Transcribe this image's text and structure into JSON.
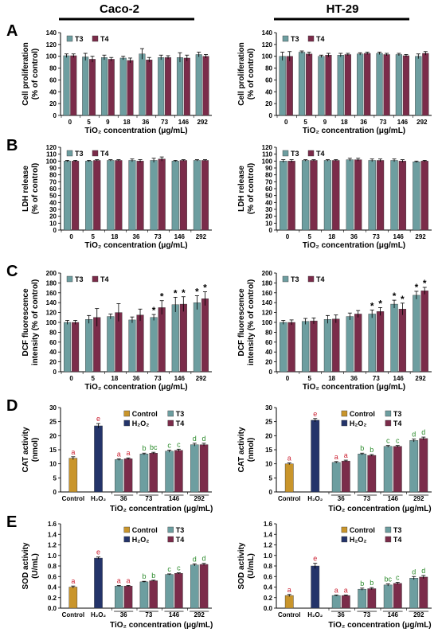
{
  "headers": {
    "left": "Caco-2",
    "right": "HT-29"
  },
  "colors": {
    "T3": "#6d9ea0",
    "T4": "#7b2c4a",
    "Control": "#c9952b",
    "H2O2": "#24346a"
  },
  "chart_data": [
    {
      "id": "A-left",
      "panel_label": "A",
      "type": "bar",
      "ylabel": [
        "Cell proliferation",
        "(% of control)"
      ],
      "xlabel": "TiO₂ concentration (μg/mL)",
      "ylim": [
        0,
        140
      ],
      "yticks": [
        0,
        20,
        40,
        60,
        80,
        100,
        120,
        140
      ],
      "legend": [
        "T3",
        "T4"
      ],
      "legend_position": "top-left",
      "categories": [
        "0",
        "5",
        "9",
        "18",
        "36",
        "73",
        "146",
        "292"
      ],
      "series": [
        {
          "name": "T3",
          "values": [
            101,
            99,
            98,
            97,
            104,
            98,
            98,
            103
          ],
          "err": [
            3,
            6,
            4,
            3,
            9,
            4,
            8,
            4
          ]
        },
        {
          "name": "T4",
          "values": [
            101,
            95,
            95,
            93,
            94,
            98,
            97,
            100
          ],
          "err": [
            3,
            5,
            3,
            4,
            4,
            3,
            5,
            3
          ]
        }
      ]
    },
    {
      "id": "A-right",
      "panel_label": "",
      "type": "bar",
      "ylabel": [
        "Cell proliferation",
        "(% of control)"
      ],
      "xlabel": "TiO₂ concentration (μg/mL)",
      "ylim": [
        0,
        140
      ],
      "yticks": [
        0,
        20,
        40,
        60,
        80,
        100,
        120,
        140
      ],
      "legend": [
        "T3",
        "T4"
      ],
      "legend_position": "top-left",
      "categories": [
        "0",
        "5",
        "9",
        "18",
        "36",
        "73",
        "146",
        "292"
      ],
      "series": [
        {
          "name": "T3",
          "values": [
            100,
            107,
            100,
            102,
            104,
            105,
            103,
            100
          ],
          "err": [
            7,
            2,
            2,
            3,
            2,
            2,
            2,
            4
          ]
        },
        {
          "name": "T4",
          "values": [
            100,
            104,
            102,
            103,
            105,
            103,
            101,
            105
          ],
          "err": [
            8,
            3,
            3,
            2,
            2,
            2,
            2,
            3
          ]
        }
      ]
    },
    {
      "id": "B-left",
      "panel_label": "B",
      "type": "bar",
      "ylabel": [
        "LDH release",
        "(% of control)"
      ],
      "xlabel": "TiO₂ concentration (μg/mL)",
      "ylim": [
        0,
        120
      ],
      "yticks": [
        0,
        10,
        20,
        30,
        40,
        50,
        60,
        70,
        80,
        90,
        100,
        110,
        120
      ],
      "legend": [
        "T3",
        "T4"
      ],
      "legend_position": "top-left",
      "categories": [
        "0",
        "5",
        "18",
        "36",
        "73",
        "146",
        "292"
      ],
      "series": [
        {
          "name": "T3",
          "values": [
            100,
            100,
            101,
            101,
            101,
            100,
            101
          ],
          "err": [
            1,
            1,
            1,
            2,
            3,
            1,
            1
          ]
        },
        {
          "name": "T4",
          "values": [
            100,
            101,
            101,
            100,
            103,
            101,
            101
          ],
          "err": [
            1,
            1,
            1,
            2,
            3,
            1,
            1
          ]
        }
      ]
    },
    {
      "id": "B-right",
      "panel_label": "",
      "type": "bar",
      "ylabel": [
        "LDH release",
        "(% of control)"
      ],
      "xlabel": "TiO₂ concentration (μg/mL)",
      "ylim": [
        0,
        120
      ],
      "yticks": [
        0,
        10,
        20,
        30,
        40,
        50,
        60,
        70,
        80,
        90,
        100,
        110,
        120
      ],
      "legend": [
        "T3",
        "T4"
      ],
      "legend_position": "top-left",
      "categories": [
        "0",
        "5",
        "18",
        "36",
        "73",
        "146",
        "292"
      ],
      "series": [
        {
          "name": "T3",
          "values": [
            100,
            101,
            101,
            102,
            101,
            101,
            99
          ],
          "err": [
            2,
            1,
            1,
            2,
            2,
            2,
            1
          ]
        },
        {
          "name": "T4",
          "values": [
            100,
            101,
            101,
            102,
            101,
            100,
            100
          ],
          "err": [
            2,
            1,
            1,
            2,
            2,
            2,
            1
          ]
        }
      ]
    },
    {
      "id": "C-left",
      "panel_label": "C",
      "type": "bar",
      "ylabel": [
        "DCF fluorescence",
        "intensity (% of control)"
      ],
      "xlabel": "TiO₂ concentration (μg/mL)",
      "ylim": [
        0,
        200
      ],
      "yticks": [
        0,
        20,
        40,
        60,
        80,
        100,
        120,
        140,
        160,
        180,
        200
      ],
      "legend": [
        "T3",
        "T4"
      ],
      "legend_position": "top-left",
      "categories": [
        "0",
        "5",
        "18",
        "36",
        "73",
        "146",
        "292"
      ],
      "series": [
        {
          "name": "T3",
          "values": [
            100,
            106,
            112,
            105,
            110,
            136,
            140
          ],
          "err": [
            4,
            8,
            5,
            6,
            6,
            15,
            14
          ],
          "sig": [
            "",
            "",
            "",
            "",
            "*",
            "*",
            "*"
          ]
        },
        {
          "name": "T4",
          "values": [
            100,
            110,
            120,
            115,
            130,
            137,
            148
          ],
          "err": [
            4,
            18,
            18,
            12,
            14,
            15,
            14
          ],
          "sig": [
            "",
            "",
            "",
            "",
            "*",
            "*",
            "*"
          ]
        }
      ]
    },
    {
      "id": "C-right",
      "panel_label": "",
      "type": "bar",
      "ylabel": [
        "DCF fluorescence",
        "intensity (% of control)"
      ],
      "xlabel": "TiO₂ concentration (μg/mL)",
      "ylim": [
        0,
        200
      ],
      "yticks": [
        0,
        20,
        40,
        60,
        80,
        100,
        120,
        140,
        160,
        180,
        200
      ],
      "legend": [
        "T3",
        "T4"
      ],
      "legend_position": "top-left",
      "categories": [
        "0",
        "5",
        "18",
        "36",
        "73",
        "146",
        "292"
      ],
      "series": [
        {
          "name": "T3",
          "values": [
            100,
            102,
            106,
            112,
            117,
            137,
            155
          ],
          "err": [
            4,
            6,
            8,
            7,
            8,
            8,
            8
          ],
          "sig": [
            "",
            "",
            "",
            "",
            "*",
            "*",
            "*"
          ]
        },
        {
          "name": "T4",
          "values": [
            100,
            103,
            107,
            117,
            122,
            127,
            164
          ],
          "err": [
            5,
            6,
            8,
            7,
            8,
            12,
            7
          ],
          "sig": [
            "",
            "",
            "",
            "",
            "*",
            "*",
            "*"
          ]
        }
      ]
    },
    {
      "id": "D-left",
      "panel_label": "D",
      "type": "bar",
      "ylabel": [
        "CAT activity",
        "(nmol)"
      ],
      "xlabel": "TiO₂ concentration (μg/mL)",
      "ylim": [
        0,
        30
      ],
      "yticks": [
        0,
        5,
        10,
        15,
        20,
        25,
        30
      ],
      "legend": [
        "Control",
        "H₂O₂",
        "T3",
        "T4"
      ],
      "legend_position": "top-right",
      "controls": [
        {
          "label": "Control",
          "value": 12,
          "err": 0.5,
          "letter": "a"
        },
        {
          "label": "H₂O₂",
          "value": 23.5,
          "err": 0.8,
          "letter": "e"
        }
      ],
      "categories": [
        "36",
        "73",
        "146",
        "292"
      ],
      "series": [
        {
          "name": "T3",
          "values": [
            11.5,
            13.5,
            14.5,
            16.8
          ],
          "err": [
            0.3,
            0.3,
            0.4,
            0.5
          ],
          "letters": [
            "a",
            "b",
            "c",
            "d"
          ]
        },
        {
          "name": "T4",
          "values": [
            11.8,
            13.8,
            14.8,
            16.8
          ],
          "err": [
            0.3,
            0.3,
            0.4,
            0.5
          ],
          "letters": [
            "a",
            "bc",
            "c",
            "d"
          ]
        }
      ]
    },
    {
      "id": "D-right",
      "panel_label": "",
      "type": "bar",
      "ylabel": [
        "CAT activity",
        "(nmol)"
      ],
      "xlabel": "TiO₂ concentration (μg/mL)",
      "ylim": [
        0,
        30
      ],
      "yticks": [
        0,
        5,
        10,
        15,
        20,
        25,
        30
      ],
      "legend": [
        "Control",
        "H₂O₂",
        "T3",
        "T4"
      ],
      "legend_position": "top-right",
      "controls": [
        {
          "label": "Control",
          "value": 10,
          "err": 0.3,
          "letter": "a"
        },
        {
          "label": "H₂O₂",
          "value": 25.5,
          "err": 0.6,
          "letter": "e"
        }
      ],
      "categories": [
        "36",
        "73",
        "146",
        "292"
      ],
      "series": [
        {
          "name": "T3",
          "values": [
            10.5,
            13.5,
            16.2,
            18.3
          ],
          "err": [
            0.3,
            0.3,
            0.3,
            0.5
          ],
          "letters": [
            "a",
            "b",
            "c",
            "d"
          ]
        },
        {
          "name": "T4",
          "values": [
            11,
            13,
            16.2,
            19
          ],
          "err": [
            0.3,
            0.3,
            0.3,
            0.5
          ],
          "letters": [
            "a",
            "b",
            "c",
            "d"
          ]
        }
      ]
    },
    {
      "id": "E-left",
      "panel_label": "E",
      "type": "bar",
      "ylabel": [
        "SOD activity",
        "(U/mL)"
      ],
      "xlabel": "TiO₂ concentration (μg/mL)",
      "ylim": [
        0,
        1.6
      ],
      "yticks": [
        0,
        0.2,
        0.4,
        0.6,
        0.8,
        1.0,
        1.2,
        1.4,
        1.6
      ],
      "legend": [
        "Control",
        "H₂O₂",
        "T3",
        "T4"
      ],
      "legend_position": "top-right",
      "controls": [
        {
          "label": "Control",
          "value": 0.4,
          "err": 0.02,
          "letter": "a"
        },
        {
          "label": "H₂O₂",
          "value": 0.95,
          "err": 0.02,
          "letter": "e"
        }
      ],
      "categories": [
        "36",
        "73",
        "146",
        "292"
      ],
      "series": [
        {
          "name": "T3",
          "values": [
            0.42,
            0.5,
            0.64,
            0.82
          ],
          "err": [
            0.01,
            0.01,
            0.01,
            0.02
          ],
          "letters": [
            "a",
            "b",
            "c",
            "d"
          ]
        },
        {
          "name": "T4",
          "values": [
            0.42,
            0.52,
            0.66,
            0.83
          ],
          "err": [
            0.01,
            0.01,
            0.01,
            0.02
          ],
          "letters": [
            "a",
            "b",
            "c",
            "d"
          ]
        }
      ]
    },
    {
      "id": "E-right",
      "panel_label": "",
      "type": "bar",
      "ylabel": [
        "SOD activity",
        "(U/mL)"
      ],
      "xlabel": "TiO₂ concentration (μg/mL)",
      "ylim": [
        0,
        1.6
      ],
      "yticks": [
        0,
        0.2,
        0.4,
        0.6,
        0.8,
        1.0,
        1.2,
        1.4,
        1.6
      ],
      "legend": [
        "Control",
        "H₂O₂",
        "T3",
        "T4"
      ],
      "legend_position": "top-right",
      "controls": [
        {
          "label": "Control",
          "value": 0.24,
          "err": 0.02,
          "letter": "a"
        },
        {
          "label": "H₂O₂",
          "value": 0.8,
          "err": 0.05,
          "letter": "e"
        }
      ],
      "categories": [
        "36",
        "73",
        "146",
        "292"
      ],
      "series": [
        {
          "name": "T3",
          "values": [
            0.24,
            0.36,
            0.44,
            0.57
          ],
          "err": [
            0.01,
            0.02,
            0.02,
            0.03
          ],
          "letters": [
            "a",
            "b",
            "bc",
            "d"
          ]
        },
        {
          "name": "T4",
          "values": [
            0.24,
            0.37,
            0.47,
            0.59
          ],
          "err": [
            0.01,
            0.02,
            0.02,
            0.03
          ],
          "letters": [
            "a",
            "b",
            "c",
            "d"
          ]
        }
      ]
    }
  ]
}
